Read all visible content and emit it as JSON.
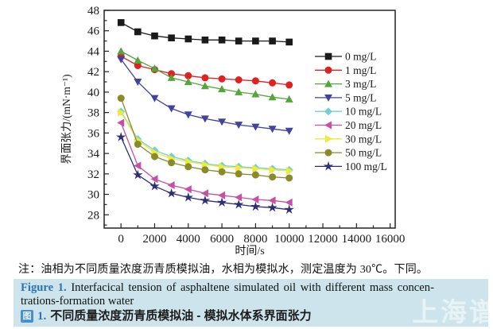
{
  "note": {
    "text": "注：油相为不同质量浓度沥青质模拟油，水相为模拟水，测定温度为 30℃。下同。"
  },
  "caption": {
    "en_label": "Figure 1.",
    "en_line1_rest": " Interfacical tension of asphaltene simulated oil with different mass concen-",
    "en_line2": "trations-formation water",
    "cn_icon": "图",
    "cn_num": "1.",
    "cn_text": "不同质量浓度沥青质模拟油 - 模拟水体系界面张力",
    "background_color": "#cde4ec",
    "label_color": "#2e74b5"
  },
  "watermark": {
    "text": "上海谱",
    "color": "rgba(255,255,255,0.55)"
  },
  "chart_data": {
    "type": "line",
    "title": "",
    "xlabel": "时间/s",
    "ylabel": "界面张力/(mN·m⁻¹)",
    "xlim": [
      -1000,
      16300
    ],
    "ylim": [
      26.7,
      48
    ],
    "xticks": [
      0,
      2000,
      4000,
      6000,
      8000,
      10000,
      12000,
      14000,
      16000
    ],
    "yticks": [
      28,
      30,
      32,
      34,
      36,
      38,
      40,
      42,
      44,
      46,
      48
    ],
    "x_minor_step": 1000,
    "y_minor_step": 1,
    "grid": false,
    "legend_position": "inside-right",
    "frame_color": "#222222",
    "x": [
      0,
      1000,
      2000,
      3000,
      4000,
      5000,
      6000,
      7000,
      8000,
      9000,
      10000
    ],
    "series": [
      {
        "name": "0 mg/L",
        "color": "#1a1a1a",
        "marker": "square",
        "values": [
          46.8,
          45.9,
          45.5,
          45.3,
          45.2,
          45.1,
          45.1,
          45.0,
          45.0,
          45.0,
          44.9
        ]
      },
      {
        "name": "1 mg/L",
        "color": "#e02121",
        "marker": "circle",
        "values": [
          43.5,
          42.6,
          42.2,
          41.8,
          41.6,
          41.4,
          41.3,
          41.2,
          41.1,
          40.9,
          40.7
        ]
      },
      {
        "name": "3 mg/L",
        "color": "#53a73a",
        "marker": "triangle-up",
        "values": [
          44.0,
          43.1,
          42.3,
          41.4,
          41.0,
          40.6,
          40.3,
          40.0,
          39.8,
          39.5,
          39.3
        ]
      },
      {
        "name": "5 mg/L",
        "color": "#44419f",
        "marker": "triangle-down",
        "values": [
          43.2,
          41.0,
          39.4,
          38.4,
          37.8,
          37.4,
          37.1,
          36.8,
          36.6,
          36.4,
          36.2
        ]
      },
      {
        "name": "10 mg/L",
        "color": "#74ced2",
        "marker": "diamond",
        "values": [
          38.1,
          35.4,
          34.3,
          33.7,
          33.3,
          33.0,
          32.8,
          32.7,
          32.6,
          32.5,
          32.4
        ]
      },
      {
        "name": "20 mg/L",
        "color": "#c74fa4",
        "marker": "triangle-left",
        "values": [
          37.0,
          32.8,
          31.5,
          30.9,
          30.5,
          30.1,
          29.9,
          29.7,
          29.5,
          29.4,
          29.2
        ]
      },
      {
        "name": "30 mg/L",
        "color": "#ebeb3c",
        "marker": "triangle-right",
        "values": [
          38.0,
          35.3,
          34.1,
          33.5,
          33.2,
          32.9,
          32.7,
          32.6,
          32.5,
          32.4,
          32.3
        ]
      },
      {
        "name": "50 mg/L",
        "color": "#8a8a2d",
        "marker": "circle",
        "values": [
          39.4,
          34.9,
          33.7,
          33.1,
          32.7,
          32.4,
          32.2,
          32.0,
          31.9,
          31.7,
          31.6
        ]
      },
      {
        "name": "100 mg/L",
        "color": "#2d2d78",
        "marker": "star",
        "values": [
          35.6,
          31.9,
          30.8,
          30.1,
          29.7,
          29.4,
          29.2,
          29.0,
          28.8,
          28.7,
          28.5
        ]
      }
    ]
  }
}
